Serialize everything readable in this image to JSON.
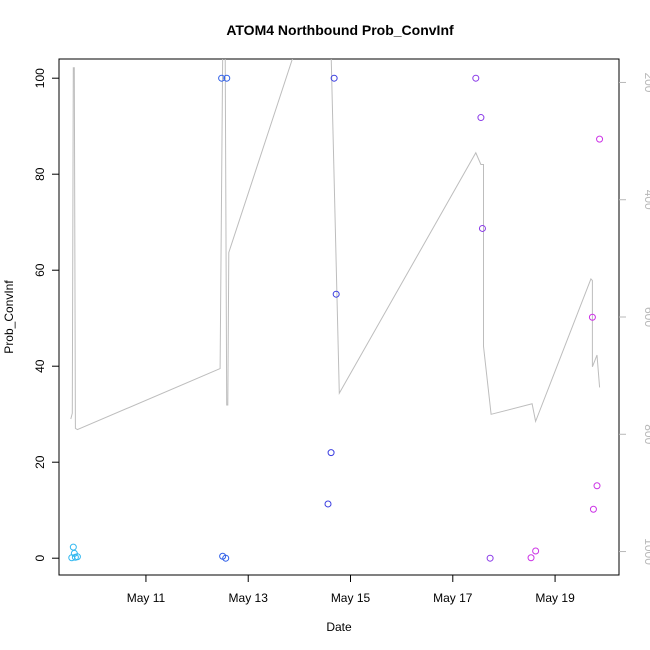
{
  "chart_data": {
    "type": "scatter",
    "title": "ATOM4 Northbound Prob_ConvInf",
    "xlabel": "Date",
    "ylabel": "Prob_ConvInf",
    "x_ticks": [
      "May 11",
      "May 13",
      "May 15",
      "May 17",
      "May 19"
    ],
    "x_tick_values": [
      11,
      13,
      15,
      17,
      19
    ],
    "xlim": [
      9.3,
      20.25
    ],
    "ylim": [
      -3.5,
      104
    ],
    "y_ticks": [
      0,
      20,
      40,
      60,
      80,
      100
    ],
    "y2_ticks": [
      200,
      400,
      600,
      800,
      1000
    ],
    "y2_reversed": true,
    "y2_lim": [
      160,
      1040
    ],
    "grid": false,
    "colors": {
      "cyan": "#33b8f0",
      "blue": "#2f5fe8",
      "indigo": "#3a3de0",
      "purple": "#8a3ae8",
      "magenta": "#cc33e6",
      "line": "#bdbdbd"
    },
    "points": [
      {
        "x": 9.58,
        "y": 2.3,
        "c": "cyan"
      },
      {
        "x": 9.6,
        "y": 1.0,
        "c": "cyan"
      },
      {
        "x": 9.62,
        "y": 0.2,
        "c": "cyan"
      },
      {
        "x": 9.66,
        "y": 0.3,
        "c": "cyan"
      },
      {
        "x": 9.55,
        "y": 0.1,
        "c": "cyan"
      },
      {
        "x": 12.48,
        "y": 100,
        "c": "blue"
      },
      {
        "x": 12.58,
        "y": 100,
        "c": "blue"
      },
      {
        "x": 12.5,
        "y": 0.4,
        "c": "blue"
      },
      {
        "x": 12.56,
        "y": 0.0,
        "c": "blue"
      },
      {
        "x": 14.68,
        "y": 100,
        "c": "indigo"
      },
      {
        "x": 14.62,
        "y": 22,
        "c": "indigo"
      },
      {
        "x": 14.56,
        "y": 11.3,
        "c": "indigo"
      },
      {
        "x": 14.72,
        "y": 55,
        "c": "indigo"
      },
      {
        "x": 17.45,
        "y": 100,
        "c": "purple"
      },
      {
        "x": 17.55,
        "y": 91.8,
        "c": "purple"
      },
      {
        "x": 17.58,
        "y": 68.7,
        "c": "purple"
      },
      {
        "x": 17.73,
        "y": 0.0,
        "c": "purple"
      },
      {
        "x": 18.53,
        "y": 0.1,
        "c": "magenta"
      },
      {
        "x": 18.62,
        "y": 1.5,
        "c": "magenta"
      },
      {
        "x": 19.73,
        "y": 50.2,
        "c": "magenta"
      },
      {
        "x": 19.75,
        "y": 10.2,
        "c": "magenta"
      },
      {
        "x": 19.82,
        "y": 15.1,
        "c": "magenta"
      },
      {
        "x": 19.87,
        "y": 87.3,
        "c": "magenta"
      }
    ],
    "line_series": [
      [
        9.53,
        774
      ],
      [
        9.56,
        764
      ],
      [
        9.58,
        175
      ],
      [
        9.6,
        175
      ],
      [
        9.62,
        790
      ],
      [
        9.66,
        792
      ],
      [
        12.45,
        688
      ],
      [
        12.5,
        150
      ],
      [
        12.55,
        150
      ],
      [
        12.58,
        750
      ],
      [
        12.6,
        750
      ],
      [
        12.62,
        490
      ],
      [
        13.9,
        150
      ],
      [
        14.0,
        150
      ],
      [
        14.62,
        150
      ],
      [
        14.78,
        730
      ],
      [
        17.45,
        320
      ],
      [
        17.55,
        340
      ],
      [
        17.6,
        340
      ],
      [
        17.6,
        650
      ],
      [
        17.75,
        766
      ],
      [
        18.55,
        748
      ],
      [
        18.62,
        778
      ],
      [
        19.7,
        535
      ],
      [
        19.73,
        538
      ],
      [
        19.73,
        685
      ],
      [
        19.82,
        665
      ],
      [
        19.87,
        720
      ]
    ]
  }
}
